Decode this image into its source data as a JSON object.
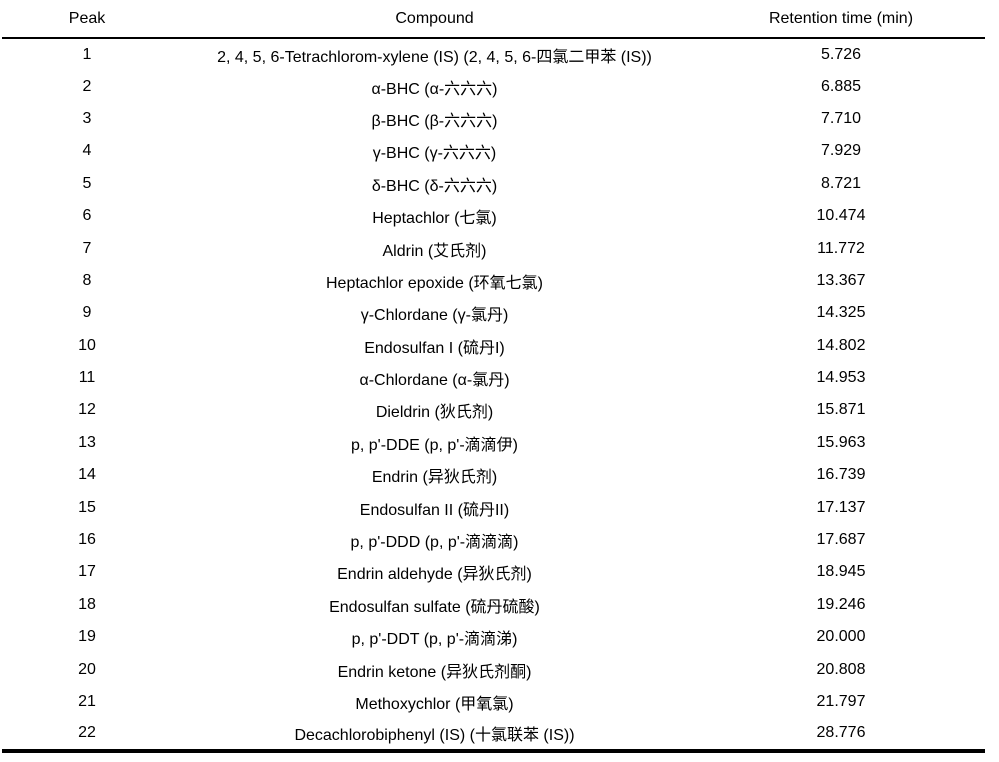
{
  "colors": {
    "text": "#000000",
    "background": "#ffffff",
    "rule": "#000000"
  },
  "table": {
    "columns": [
      "Peak",
      "Compound",
      "Retention time (min)"
    ],
    "rows": [
      {
        "peak": "1",
        "compound": "2, 4, 5, 6-Tetrachlorom-xylene (IS) (2, 4, 5, 6-四氯二甲苯 (IS))",
        "retention": "5.726"
      },
      {
        "peak": "2",
        "compound": "α-BHC (α-六六六)",
        "retention": "6.885"
      },
      {
        "peak": "3",
        "compound": "β-BHC (β-六六六)",
        "retention": "7.710"
      },
      {
        "peak": "4",
        "compound": "γ-BHC (γ-六六六)",
        "retention": "7.929"
      },
      {
        "peak": "5",
        "compound": "δ-BHC (δ-六六六)",
        "retention": "8.721"
      },
      {
        "peak": "6",
        "compound": "Heptachlor (七氯)",
        "retention": "10.474"
      },
      {
        "peak": "7",
        "compound": "Aldrin (艾氏剂)",
        "retention": "11.772"
      },
      {
        "peak": "8",
        "compound": "Heptachlor epoxide (环氧七氯)",
        "retention": "13.367"
      },
      {
        "peak": "9",
        "compound": "γ-Chlordane (γ-氯丹)",
        "retention": "14.325"
      },
      {
        "peak": "10",
        "compound": "Endosulfan I (硫丹I)",
        "retention": "14.802"
      },
      {
        "peak": "11",
        "compound": "α-Chlordane (α-氯丹)",
        "retention": "14.953"
      },
      {
        "peak": "12",
        "compound": "Dieldrin (狄氏剂)",
        "retention": "15.871"
      },
      {
        "peak": "13",
        "compound": "p, p'-DDE (p, p'-滴滴伊)",
        "retention": "15.963"
      },
      {
        "peak": "14",
        "compound": "Endrin (异狄氏剂)",
        "retention": "16.739"
      },
      {
        "peak": "15",
        "compound": "Endosulfan II (硫丹II)",
        "retention": "17.137"
      },
      {
        "peak": "16",
        "compound": "p, p'-DDD (p, p'-滴滴滴)",
        "retention": "17.687"
      },
      {
        "peak": "17",
        "compound": "Endrin aldehyde (异狄氏剂)",
        "retention": "18.945"
      },
      {
        "peak": "18",
        "compound": "Endosulfan sulfate (硫丹硫酸)",
        "retention": "19.246"
      },
      {
        "peak": "19",
        "compound": "p, p'-DDT (p, p'-滴滴涕)",
        "retention": "20.000"
      },
      {
        "peak": "20",
        "compound": "Endrin ketone (异狄氏剂酮)",
        "retention": "20.808"
      },
      {
        "peak": "21",
        "compound": "Methoxychlor (甲氧氯)",
        "retention": "21.797"
      },
      {
        "peak": "22",
        "compound": "Decachlorobiphenyl (IS) (十氯联苯 (IS))",
        "retention": "28.776"
      }
    ]
  }
}
